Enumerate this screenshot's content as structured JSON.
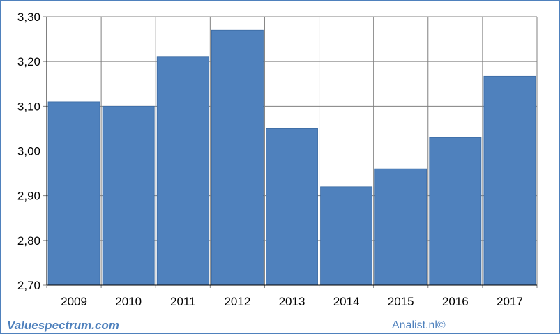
{
  "chart_data": {
    "type": "bar",
    "categories": [
      "2009",
      "2010",
      "2011",
      "2012",
      "2013",
      "2014",
      "2015",
      "2016",
      "2017"
    ],
    "values": [
      3.11,
      3.1,
      3.21,
      3.27,
      3.05,
      2.92,
      2.96,
      3.03,
      3.167
    ],
    "ylim": [
      2.7,
      3.3
    ],
    "yticks": [
      "2,70",
      "2,80",
      "2,90",
      "3,00",
      "3,10",
      "3,20",
      "3,30"
    ],
    "ytick_values": [
      2.7,
      2.8,
      2.9,
      3.0,
      3.1,
      3.2,
      3.3
    ],
    "title": "",
    "xlabel": "",
    "ylabel": "",
    "grid": true,
    "bar_color": "#4f81bd",
    "grid_color": "#808080"
  },
  "footer": {
    "left": "Valuespectrum.com",
    "right": "Analist.nl©"
  },
  "colors": {
    "border": "#4f81bd",
    "text": "#000000",
    "brand": "#4f81bd"
  }
}
